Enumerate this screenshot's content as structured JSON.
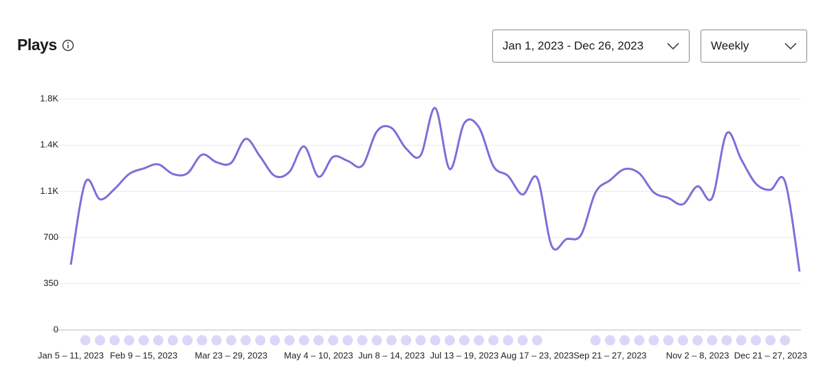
{
  "header": {
    "title": "Plays"
  },
  "controls": {
    "date_range": "Jan 1, 2023 - Dec 26, 2023",
    "interval": "Weekly"
  },
  "chart_data": {
    "type": "line",
    "categories": [
      "Jan 5 – 11, 2023",
      null,
      null,
      null,
      null,
      "Feb 9 – 15, 2023",
      null,
      null,
      null,
      null,
      null,
      "Mar 23 – 29, 2023",
      null,
      null,
      null,
      null,
      null,
      "May 4 – 10, 2023",
      null,
      null,
      null,
      null,
      "Jun 8 – 14, 2023",
      null,
      null,
      null,
      null,
      "Jul 13 – 19, 2023",
      null,
      null,
      null,
      null,
      "Aug 17 – 23, 2023",
      null,
      null,
      null,
      null,
      "Sep 21 – 27, 2023",
      null,
      null,
      null,
      null,
      null,
      "Nov 2 – 8, 2023",
      null,
      null,
      null,
      null,
      null,
      null,
      "Dec 21 – 27, 2023"
    ],
    "series": [
      {
        "name": "Plays",
        "color": "#7b6fd9",
        "values": [
          495,
          1120,
          990,
          1068,
          1182,
          1224,
          1255,
          1182,
          1187,
          1328,
          1271,
          1266,
          1448,
          1312,
          1167,
          1198,
          1391,
          1161,
          1312,
          1281,
          1245,
          1505,
          1531,
          1375,
          1323,
          1682,
          1219,
          1568,
          1536,
          1240,
          1167,
          1026,
          1151,
          635,
          688,
          719,
          1042,
          1135,
          1219,
          1187,
          1042,
          1000,
          953,
          1089,
          1000,
          1490,
          1292,
          1109,
          1062,
          1125,
          443
        ]
      }
    ],
    "ylim": [
      0,
      1750
    ],
    "yticks": [
      0,
      350,
      700,
      {
        "value": 1050,
        "label": "1.1K"
      },
      {
        "value": 1400,
        "label": "1.4K"
      },
      {
        "value": 1750,
        "label": "1.8K"
      }
    ],
    "grid": true
  }
}
